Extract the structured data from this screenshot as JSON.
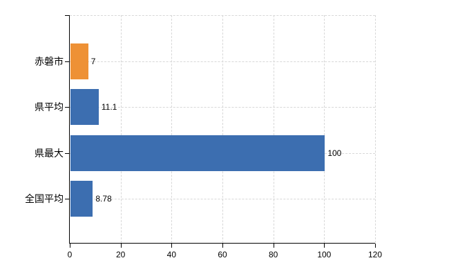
{
  "chart_data": {
    "type": "bar",
    "orientation": "horizontal",
    "title": "",
    "xlabel": "",
    "ylabel": "",
    "categories": [
      "赤磐市",
      "県平均",
      "県最大",
      "全国平均"
    ],
    "values": [
      7,
      11.1,
      100,
      8.78
    ],
    "value_labels": [
      "7",
      "11.1",
      "100",
      "8.78"
    ],
    "bar_colors": [
      "#EE9135",
      "#3C6EB0",
      "#3C6EB0",
      "#3C6EB0"
    ],
    "xlim": [
      0,
      120
    ],
    "x_ticks": [
      0,
      20,
      40,
      60,
      80,
      100,
      120
    ],
    "grid": true,
    "grid_style": "dashed",
    "legend_position": "none"
  },
  "colors": {
    "background": "#ffffff",
    "axis": "#000000",
    "grid": "#d7d7d7",
    "text": "#000000",
    "bar_orange": "#EE9135",
    "bar_blue": "#3C6EB0"
  }
}
